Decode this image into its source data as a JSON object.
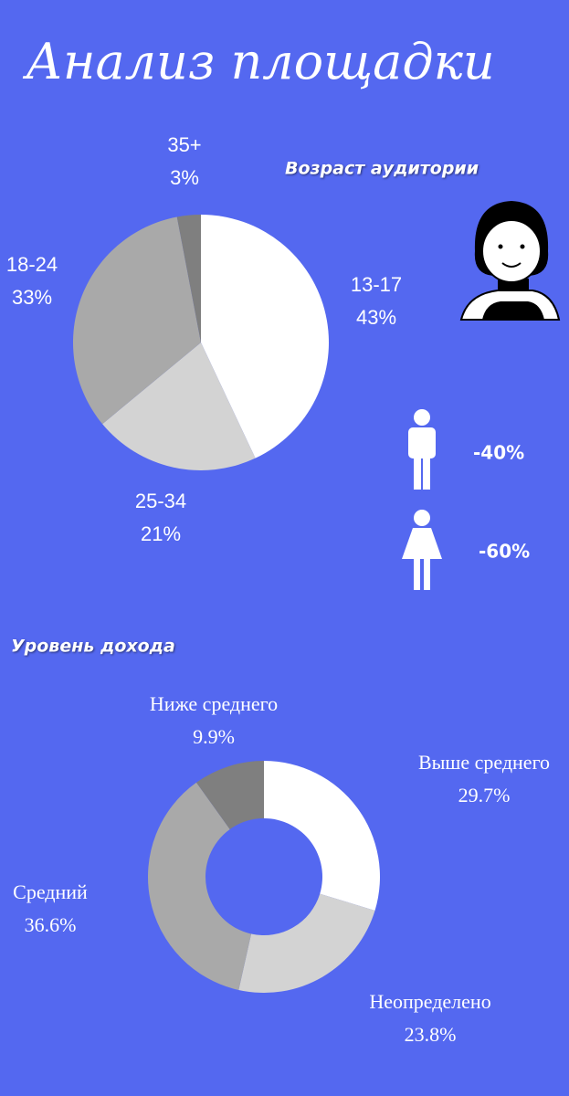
{
  "title": "Анализ площадки",
  "chart_data": [
    {
      "type": "pie",
      "title": "Возраст аудитории",
      "categories": [
        "13-17",
        "25-34",
        "18-24",
        "35+"
      ],
      "values": [
        43,
        21,
        33,
        3
      ],
      "value_labels": [
        "43%",
        "21%",
        "33%",
        "3%"
      ],
      "colors": [
        "#ffffff",
        "#d3d3d3",
        "#a9a9a9",
        "#7f7f7f"
      ]
    },
    {
      "type": "donut",
      "title": "Уровень дохода",
      "categories": [
        "Выше среднего",
        "Неопределено",
        "Средний",
        "Ниже среднего"
      ],
      "values": [
        29.7,
        23.8,
        36.6,
        9.9
      ],
      "value_labels": [
        "29.7%",
        "23.8%",
        "36.6%",
        "9.9%"
      ],
      "colors": [
        "#ffffff",
        "#d3d3d3",
        "#a9a9a9",
        "#7f7f7f"
      ]
    }
  ],
  "gender_labels": [
    "-40%",
    "-60%"
  ]
}
